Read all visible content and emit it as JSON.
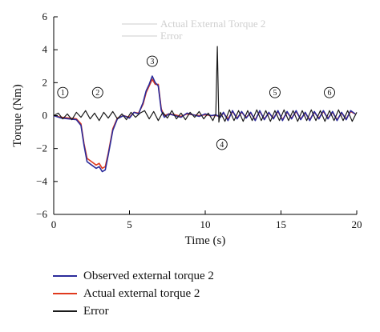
{
  "chart_data": {
    "type": "line",
    "xlabel": "Time (s)",
    "ylabel": "Torque (Nm)",
    "xlim": [
      0,
      20
    ],
    "ylim": [
      -6,
      6
    ],
    "xticks": [
      0,
      5,
      10,
      15,
      20
    ],
    "yticks": [
      -6,
      -4,
      -2,
      0,
      2,
      4,
      6
    ],
    "grid": false,
    "legend_position": "bottom-left",
    "ghost_legend": [
      "Actual External Torque 2",
      "Error"
    ],
    "annotations": [
      {
        "label": "1",
        "x": 0.6,
        "y": 1.4
      },
      {
        "label": "2",
        "x": 2.9,
        "y": 1.4
      },
      {
        "label": "3",
        "x": 6.5,
        "y": 3.3
      },
      {
        "label": "4",
        "x": 11.1,
        "y": -1.75
      },
      {
        "label": "5",
        "x": 14.6,
        "y": 1.4
      },
      {
        "label": "6",
        "x": 18.2,
        "y": 1.4
      }
    ],
    "series": [
      {
        "name": "Observed external torque 2",
        "color": "#2b2b9a",
        "x": [
          0,
          0.5,
          1.0,
          1.5,
          1.8,
          2.0,
          2.2,
          2.5,
          2.8,
          3.0,
          3.2,
          3.4,
          3.6,
          3.9,
          4.2,
          4.6,
          5.0,
          5.3,
          5.6,
          5.9,
          6.1,
          6.3,
          6.5,
          6.7,
          6.9,
          7.1,
          7.3,
          7.6,
          8.0,
          8.4,
          8.8,
          9.2,
          9.6,
          10.0,
          10.4,
          10.7,
          11.0,
          11.2,
          11.5,
          11.8,
          12.1,
          12.4,
          12.7,
          13.0,
          13.3,
          13.6,
          13.9,
          14.2,
          14.5,
          14.8,
          15.1,
          15.4,
          15.7,
          16.0,
          16.3,
          16.6,
          16.9,
          17.2,
          17.5,
          17.8,
          18.1,
          18.4,
          18.7,
          19.0,
          19.3,
          19.6,
          19.9
        ],
        "values": [
          0.0,
          -0.15,
          -0.2,
          -0.25,
          -0.6,
          -1.8,
          -2.8,
          -3.0,
          -3.2,
          -3.1,
          -3.4,
          -3.3,
          -2.4,
          -0.9,
          -0.2,
          0.0,
          -0.15,
          0.2,
          0.1,
          0.8,
          1.5,
          1.9,
          2.4,
          2.0,
          1.8,
          0.3,
          -0.1,
          0.1,
          0.0,
          -0.1,
          0.15,
          0.05,
          -0.05,
          0.1,
          0.0,
          0.05,
          -0.1,
          0.2,
          -0.3,
          0.3,
          -0.2,
          0.25,
          -0.15,
          0.2,
          -0.3,
          0.3,
          -0.25,
          0.2,
          -0.2,
          0.3,
          -0.3,
          0.25,
          -0.2,
          0.3,
          -0.25,
          0.2,
          -0.3,
          0.25,
          -0.2,
          0.3,
          -0.2,
          0.25,
          -0.3,
          0.2,
          -0.25,
          0.3,
          0.1
        ]
      },
      {
        "name": "Actual external torque 2",
        "color": "#e03a1e",
        "x": [
          0,
          0.5,
          1.0,
          1.5,
          1.8,
          2.0,
          2.2,
          2.5,
          2.8,
          3.0,
          3.2,
          3.4,
          3.6,
          3.9,
          4.2,
          4.6,
          5.0,
          5.3,
          5.6,
          5.9,
          6.1,
          6.3,
          6.5,
          6.7,
          6.9,
          7.1,
          7.3,
          7.6,
          8.0,
          8.4,
          8.8,
          9.2,
          9.6,
          10.0,
          10.4,
          10.7,
          11.0,
          11.2,
          11.5,
          11.8,
          12.1,
          12.4,
          12.7,
          13.0,
          13.3,
          13.6,
          13.9,
          14.2,
          14.5,
          14.8,
          15.1,
          15.4,
          15.7,
          16.0,
          16.3,
          16.6,
          16.9,
          17.2,
          17.5,
          17.8,
          18.1,
          18.4,
          18.7,
          19.0,
          19.3,
          19.6,
          19.9
        ],
        "values": [
          0.0,
          -0.1,
          -0.15,
          -0.2,
          -0.5,
          -1.7,
          -2.6,
          -2.8,
          -3.0,
          -2.9,
          -3.2,
          -3.1,
          -2.3,
          -0.8,
          -0.15,
          0.0,
          -0.1,
          0.2,
          0.15,
          0.7,
          1.4,
          1.8,
          2.2,
          1.9,
          1.9,
          0.4,
          0.0,
          0.1,
          0.05,
          -0.05,
          0.1,
          0.05,
          0.0,
          0.05,
          0.0,
          0.0,
          -0.05,
          0.15,
          -0.2,
          0.25,
          -0.15,
          0.2,
          -0.1,
          0.15,
          -0.25,
          0.25,
          -0.2,
          0.15,
          -0.15,
          0.25,
          -0.25,
          0.2,
          -0.15,
          0.25,
          -0.2,
          0.15,
          -0.25,
          0.2,
          -0.15,
          0.25,
          -0.15,
          0.2,
          -0.25,
          0.15,
          -0.2,
          0.25,
          0.1
        ]
      },
      {
        "name": "Error",
        "color": "#1a1a1a",
        "x": [
          0,
          0.3,
          0.6,
          0.9,
          1.2,
          1.5,
          1.8,
          2.1,
          2.4,
          2.7,
          3.0,
          3.3,
          3.6,
          3.9,
          4.2,
          4.5,
          4.8,
          5.1,
          5.4,
          5.7,
          6.0,
          6.3,
          6.6,
          6.9,
          7.2,
          7.5,
          7.8,
          8.1,
          8.4,
          8.7,
          9.0,
          9.3,
          9.6,
          9.9,
          10.2,
          10.5,
          10.7,
          10.8,
          10.9,
          11.0,
          11.3,
          11.6,
          11.9,
          12.2,
          12.5,
          12.8,
          13.1,
          13.4,
          13.7,
          14.0,
          14.3,
          14.6,
          14.9,
          15.2,
          15.5,
          15.8,
          16.1,
          16.4,
          16.7,
          17.0,
          17.3,
          17.6,
          17.9,
          18.2,
          18.5,
          18.8,
          19.1,
          19.4,
          19.7,
          20.0
        ],
        "values": [
          0.0,
          0.15,
          -0.2,
          0.1,
          -0.25,
          0.2,
          -0.1,
          0.3,
          -0.2,
          0.15,
          -0.3,
          0.2,
          -0.15,
          0.25,
          -0.2,
          0.1,
          -0.25,
          0.2,
          -0.1,
          0.15,
          0.3,
          -0.2,
          0.25,
          -0.3,
          0.2,
          -0.15,
          0.3,
          -0.2,
          0.15,
          -0.25,
          0.2,
          -0.1,
          0.25,
          -0.2,
          0.15,
          -0.3,
          0.1,
          4.2,
          -0.4,
          0.2,
          -0.35,
          0.35,
          -0.3,
          0.3,
          -0.35,
          0.3,
          -0.3,
          0.35,
          -0.3,
          0.3,
          -0.35,
          0.3,
          -0.3,
          0.35,
          -0.3,
          0.3,
          -0.35,
          0.3,
          -0.3,
          0.35,
          -0.3,
          0.3,
          -0.35,
          0.3,
          -0.3,
          0.35,
          -0.3,
          0.3,
          -0.35,
          0.2
        ]
      }
    ]
  },
  "legend": {
    "items": [
      {
        "label": "Observed external torque 2",
        "color": "#2b2b9a"
      },
      {
        "label": "Actual external torque 2",
        "color": "#e03a1e"
      },
      {
        "label": "Error",
        "color": "#1a1a1a"
      }
    ]
  }
}
